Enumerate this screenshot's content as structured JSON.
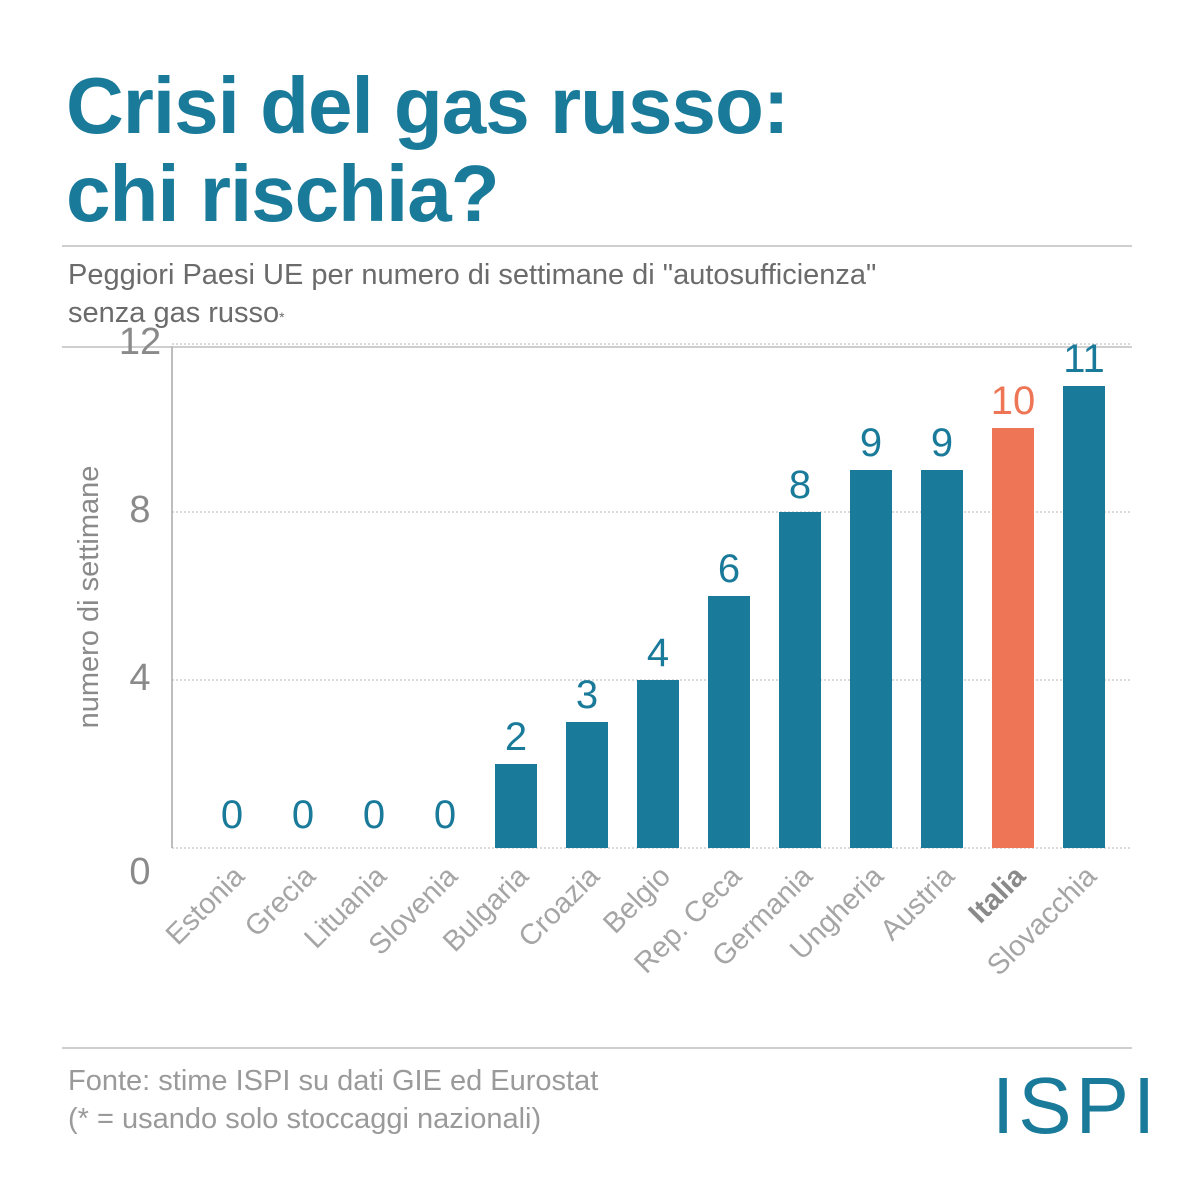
{
  "title": {
    "line1": "Crisi del gas russo:",
    "line2": "chi rischia?"
  },
  "subtitle": {
    "line1": "Peggiori Paesi UE per numero di settimane di \"autosufficienza\"",
    "line2": "senza gas russo",
    "marker": "*"
  },
  "footer": {
    "source": "Fonte: stime ISPI su dati GIE ed Eurostat",
    "note": "(* = usando solo stoccaggi nazionali)"
  },
  "logo": "ISPI",
  "colors": {
    "accent": "#1a7a9a",
    "highlight": "#ee7656",
    "grey_text": "#6b6b6b"
  },
  "chart_data": {
    "type": "bar",
    "ylabel": "numero di settimane",
    "ylim": [
      0,
      12
    ],
    "yticks": [
      0,
      4,
      8,
      12
    ],
    "grid": true,
    "categories": [
      "Estonia",
      "Grecia",
      "Lituania",
      "Slovenia",
      "Bulgaria",
      "Croazia",
      "Belgio",
      "Rep. Ceca",
      "Germania",
      "Ungheria",
      "Austria",
      "Italia",
      "Slovacchia"
    ],
    "values": [
      0,
      0,
      0,
      0,
      2,
      3,
      4,
      6,
      8,
      9,
      9,
      10,
      11
    ],
    "highlight": "Italia"
  }
}
